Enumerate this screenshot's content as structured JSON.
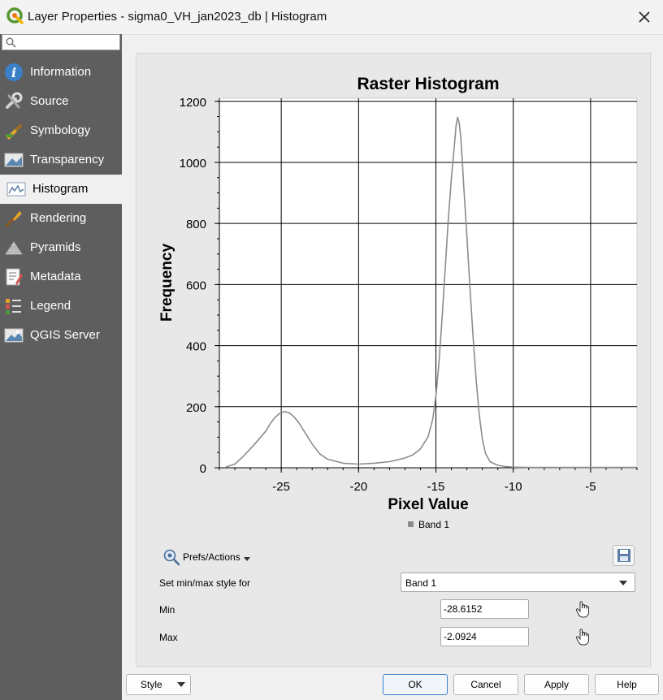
{
  "window": {
    "title": "Layer Properties - sigma0_VH_jan2023_db | Histogram"
  },
  "sidebar": {
    "search_placeholder": "",
    "items": [
      {
        "label": "Information",
        "icon": "information-icon"
      },
      {
        "label": "Source",
        "icon": "source-icon"
      },
      {
        "label": "Symbology",
        "icon": "symbology-icon"
      },
      {
        "label": "Transparency",
        "icon": "transparency-icon"
      },
      {
        "label": "Histogram",
        "icon": "histogram-icon",
        "active": true
      },
      {
        "label": "Rendering",
        "icon": "rendering-icon"
      },
      {
        "label": "Pyramids",
        "icon": "pyramids-icon"
      },
      {
        "label": "Metadata",
        "icon": "metadata-icon"
      },
      {
        "label": "Legend",
        "icon": "legend-icon"
      },
      {
        "label": "QGIS Server",
        "icon": "qgis-server-icon"
      }
    ]
  },
  "histogram": {
    "prefs_label": "Prefs/Actions",
    "minmax_label": "Set min/max style for",
    "band_selected": "Band 1",
    "min_label": "Min",
    "min_value": "-28.6152",
    "max_label": "Max",
    "max_value": "-2.0924"
  },
  "buttons": {
    "style": "Style",
    "ok": "OK",
    "cancel": "Cancel",
    "apply": "Apply",
    "help": "Help"
  },
  "colors": {
    "sidebar_bg": "#5e5e5e",
    "series": "#8c8c8c",
    "accent": "#3c7fd1"
  },
  "chart_data": {
    "type": "line",
    "title": "Raster Histogram",
    "xlabel": "Pixel Value",
    "ylabel": "Frequency",
    "xlim": [
      -29,
      -2
    ],
    "ylim": [
      0,
      1210
    ],
    "xticks": [
      -25,
      -20,
      -15,
      -10,
      -5
    ],
    "yticks": [
      0,
      200,
      400,
      600,
      800,
      1000,
      1200
    ],
    "grid": true,
    "legend": "bottom-center",
    "series": [
      {
        "name": "Band 1",
        "x": [
          -28.6,
          -28,
          -27.5,
          -27,
          -26.5,
          -26,
          -25.7,
          -25.4,
          -25.1,
          -24.8,
          -24.5,
          -24.2,
          -23.9,
          -23.5,
          -23,
          -22.5,
          -22,
          -21,
          -20,
          -19,
          -18,
          -17,
          -16.5,
          -16,
          -15.5,
          -15.2,
          -15,
          -14.8,
          -14.6,
          -14.4,
          -14.2,
          -14,
          -13.8,
          -13.7,
          -13.6,
          -13.5,
          -13.4,
          -13.3,
          -13.2,
          -13,
          -12.8,
          -12.6,
          -12.4,
          -12.2,
          -12,
          -11.8,
          -11.5,
          -11,
          -10.5,
          -10,
          -9,
          -8,
          -6,
          -4,
          -2.1
        ],
        "y": [
          2,
          12,
          35,
          62,
          90,
          120,
          145,
          165,
          178,
          184,
          180,
          168,
          150,
          118,
          78,
          45,
          28,
          15,
          12,
          15,
          20,
          32,
          42,
          62,
          102,
          160,
          235,
          345,
          490,
          650,
          810,
          950,
          1060,
          1120,
          1148,
          1130,
          1085,
          1010,
          920,
          760,
          590,
          430,
          290,
          175,
          95,
          48,
          20,
          8,
          4,
          2,
          1,
          1,
          1,
          1,
          1
        ]
      }
    ]
  }
}
